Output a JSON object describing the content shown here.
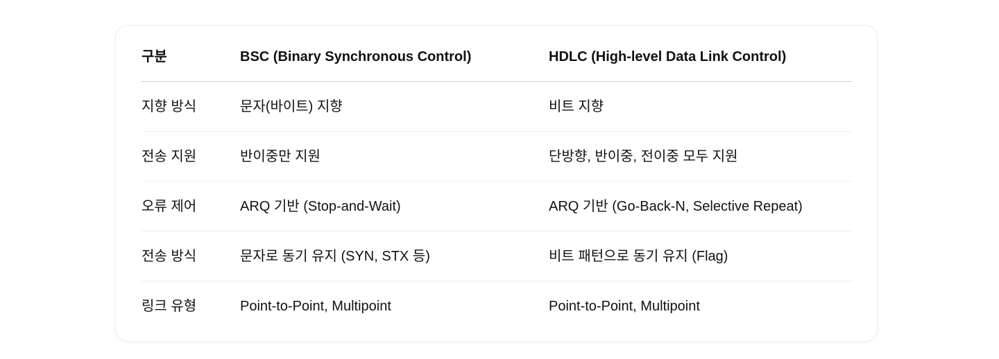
{
  "table": {
    "headers": [
      "구분",
      "BSC (Binary Synchronous Control)",
      "HDLC (High-level Data Link Control)"
    ],
    "rows": [
      [
        "지향 방식",
        "문자(바이트) 지향",
        "비트 지향"
      ],
      [
        "전송 지원",
        "반이중만 지원",
        "단방향, 반이중, 전이중 모두 지원"
      ],
      [
        "오류 제어",
        "ARQ 기반 (Stop-and-Wait)",
        "ARQ 기반 (Go-Back-N, Selective Repeat)"
      ],
      [
        "전송 방식",
        "문자로 동기 유지 (SYN, STX 등)",
        "비트 패턴으로 동기 유지 (Flag)"
      ],
      [
        "링크 유형",
        "Point-to-Point, Multipoint",
        "Point-to-Point, Multipoint"
      ]
    ]
  }
}
